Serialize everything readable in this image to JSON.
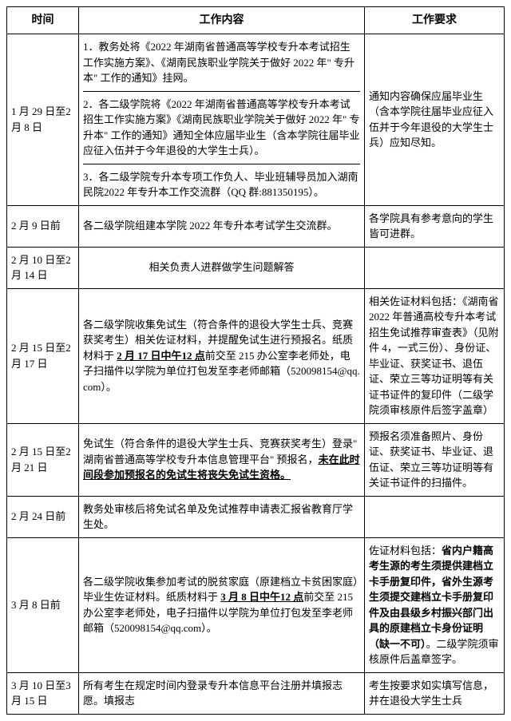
{
  "header": {
    "time": "时间",
    "content": "工作内容",
    "requirement": "工作要求"
  },
  "rows": [
    {
      "time": "1 月 29 日至2 月 8 日",
      "content_parts": [
        {
          "text": "1．教务处将《2022 年湖南省普通高等学校专升本考试招生工作实施方案》、《湖南民族职业学院关于做好 2022 年\" 专升本\" 工作的通知》挂网。"
        },
        {
          "text": "2．各二级学院将《2022 年湖南省普通高等学校专升本考试招生工作实施方案》《湖南民族职业学院关于做好 2022 年\" 专升本\" 工作的通知》通知全体应届毕业生（含本学院往届毕业应征入伍并于今年退役的大学生士兵）。"
        },
        {
          "text": "3．各二级学院专升本专项工作负人、毕业班辅导员加入湖南民院2022 年专升本工作交流群（QQ 群:881350195）。"
        }
      ],
      "requirement": "通知内容确保应届毕业生（含本学院往届毕业应征入伍并于今年退役的大学生士兵）应知尽知。"
    },
    {
      "time": "2 月 9 日前",
      "content": "各二级学院组建本学院 2022 年专升本考试学生交流群。",
      "requirement": "各学院具有参考意向的学生皆可进群。"
    },
    {
      "time": "2 月 10 日至2 月 14 日",
      "content": "相关负责人进群做学生问题解答",
      "centered": true,
      "requirement": ""
    },
    {
      "time": "2 月 15 日至2 月 17 日",
      "content_pre": "各二级学院收集免试生（符合条件的退役大学生士兵、竞赛获奖考生）相关佐证材料，并提醒免试生进行预报名。纸质材料于 ",
      "content_bold": "2 月 17 日中午12 点",
      "content_post": "前交至 215 办公室李老师处，电子扫描件以学院为单位打包发至李老师邮箱（520098154@qq.com）。",
      "requirement": "相关佐证材料包括：《湖南省 2022 年普通高校专升本考试招生免试推荐审查表》（见附件 4，一式三份）、身份证、毕业证、获奖证书、退伍证、荣立三等功证明等有关证书证件的复印件（二级学院须审核原件后签字盖章）"
    },
    {
      "time": "2 月 15 日至2 月 21 日",
      "content_pre": "免试生（符合条件的退役大学生士兵、竞赛获奖考生）登录\" 湖南省普通高等学校专升本信息管理平台\" 预报名，",
      "content_bold": "未在此时间段参加预报名的免试生将丧失免试生资格。",
      "content_post": "",
      "requirement": "预报名须准备照片、身份证、获奖证书、毕业证、退伍证、荣立三等功证明等有关证书证件的扫描件。"
    },
    {
      "time": "2 月 24 日前",
      "content": "教务处审核后将免试名单及免试推荐申请表汇报省教育厅学生处。",
      "requirement": ""
    },
    {
      "time": "3 月 8 日前",
      "content_pre": "各二级学院收集参加考试的脱贫家庭（原建档立卡贫困家庭）毕业生佐证材料。纸质材料于 ",
      "content_bold": "3 月 8 日中午12 点",
      "content_post": "前交至 215 办公室李老师处，电子扫描件以学院为单位打包发至李老师邮箱（520098154@qq.com）。",
      "requirement_pre": "佐证材料包括：",
      "requirement_bold": "省内户籍高考生源的考生须提供建档立卡手册复印件，省外生源考生须提交建档立卡手册复印件及由县级乡村振兴部门出具的原建档立卡身份证明（缺一不可）",
      "requirement_post": "。二级学院须审核原件后盖章签字。"
    },
    {
      "time": "3 月 10 日至3 月 15 日",
      "content": "所有考生在规定时间内登录专升本信息平台注册并填报志愿。填报志",
      "requirement": "考生按要求如实填写信息，并在退役大学生士兵"
    }
  ]
}
